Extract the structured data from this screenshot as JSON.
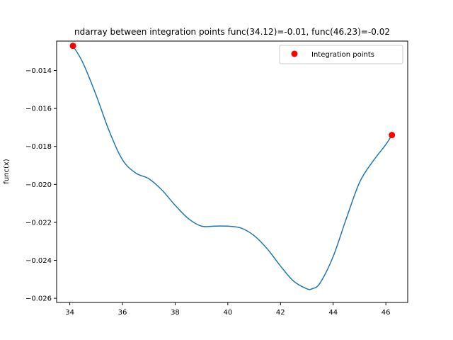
{
  "chart_data": {
    "type": "line",
    "title": "ndarray between integration points func(34.12)=-0.01, func(46.23)=-0.02",
    "xlabel": "",
    "ylabel": "func(x)",
    "xlim": [
      33.5,
      46.83
    ],
    "ylim": [
      -0.02622,
      -0.01245
    ],
    "xticks": [
      34,
      36,
      38,
      40,
      42,
      44,
      46
    ],
    "yticks": [
      -0.026,
      -0.024,
      -0.022,
      -0.02,
      -0.018,
      -0.016,
      -0.014
    ],
    "ytick_labels": [
      "−0.026",
      "−0.024",
      "−0.022",
      "−0.020",
      "−0.018",
      "−0.016",
      "−0.014"
    ],
    "grid": false,
    "legend": {
      "position": "top-right",
      "entries": [
        "Integration points"
      ]
    },
    "series": [
      {
        "kind": "line",
        "color": "#1f77b4",
        "x": [
          34.12,
          34.5,
          35.0,
          35.5,
          36.0,
          36.5,
          37.0,
          37.5,
          38.0,
          38.5,
          39.0,
          39.5,
          40.0,
          40.5,
          41.0,
          41.5,
          42.0,
          42.5,
          43.0,
          43.2,
          43.5,
          44.0,
          44.5,
          45.0,
          45.5,
          46.0,
          46.23
        ],
        "y": [
          -0.0127,
          -0.0136,
          -0.0153,
          -0.0172,
          -0.0187,
          -0.0194,
          -0.0197,
          -0.0203,
          -0.0211,
          -0.0218,
          -0.0222,
          -0.0222,
          -0.0222,
          -0.0223,
          -0.0227,
          -0.0234,
          -0.0243,
          -0.0251,
          -0.0255,
          -0.0255,
          -0.0252,
          -0.0238,
          -0.0218,
          -0.0199,
          -0.0188,
          -0.0179,
          -0.0174
        ]
      }
    ],
    "points": {
      "name": "Integration points",
      "color": "#ff0000",
      "x": [
        34.12,
        46.23
      ],
      "y": [
        -0.0127,
        -0.0174
      ]
    }
  }
}
